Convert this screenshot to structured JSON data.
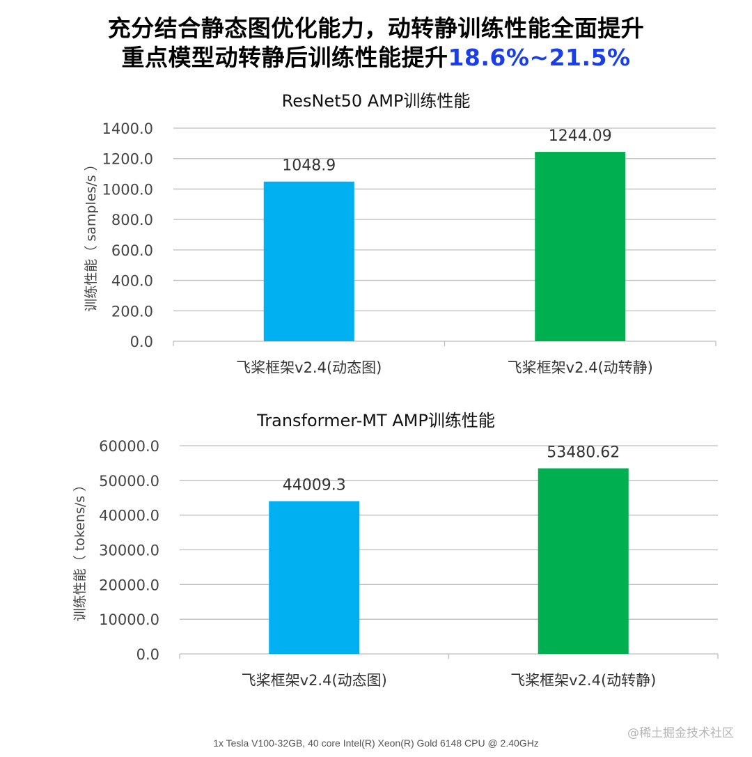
{
  "headline": {
    "line1": "充分结合静态图优化能力，动转静训练性能全面提升",
    "line2_prefix": "重点模型动转静后训练性能提升",
    "line2_highlight": "18.6%~21.5%",
    "highlight_color": "#1a3fe8"
  },
  "chart_data": [
    {
      "type": "bar",
      "title": "ResNet50 AMP训练性能",
      "ylabel": "训练性能（ samples/s ）",
      "xlabel": "",
      "categories": [
        "飞桨框架v2.4(动态图)",
        "飞桨框架v2.4(动转静)"
      ],
      "values": [
        1048.9,
        1244.09
      ],
      "value_labels": [
        "1048.9",
        "1244.09"
      ],
      "colors": [
        "#00b0f0",
        "#00b050"
      ],
      "ylim": [
        0,
        1400
      ],
      "yticks": [
        "0.0",
        "200.0",
        "400.0",
        "600.0",
        "800.0",
        "1000.0",
        "1200.0",
        "1400.0"
      ],
      "grid": true,
      "legend": "none"
    },
    {
      "type": "bar",
      "title": "Transformer-MT AMP训练性能",
      "ylabel": "训练性能（ tokens/s ）",
      "xlabel": "",
      "categories": [
        "飞桨框架v2.4(动态图)",
        "飞桨框架v2.4(动转静)"
      ],
      "values": [
        44009.3,
        53480.62
      ],
      "value_labels": [
        "44009.3",
        "53480.62"
      ],
      "colors": [
        "#00b0f0",
        "#00b050"
      ],
      "ylim": [
        0,
        60000
      ],
      "yticks": [
        "0.0",
        "10000.0",
        "20000.0",
        "30000.0",
        "40000.0",
        "50000.0",
        "60000.0"
      ],
      "grid": true,
      "legend": "none"
    }
  ],
  "footer": "1x Tesla V100-32GB, 40 core Intel(R) Xeon(R) Gold 6148 CPU @ 2.40GHz",
  "watermark": "@稀土掘金技术社区"
}
